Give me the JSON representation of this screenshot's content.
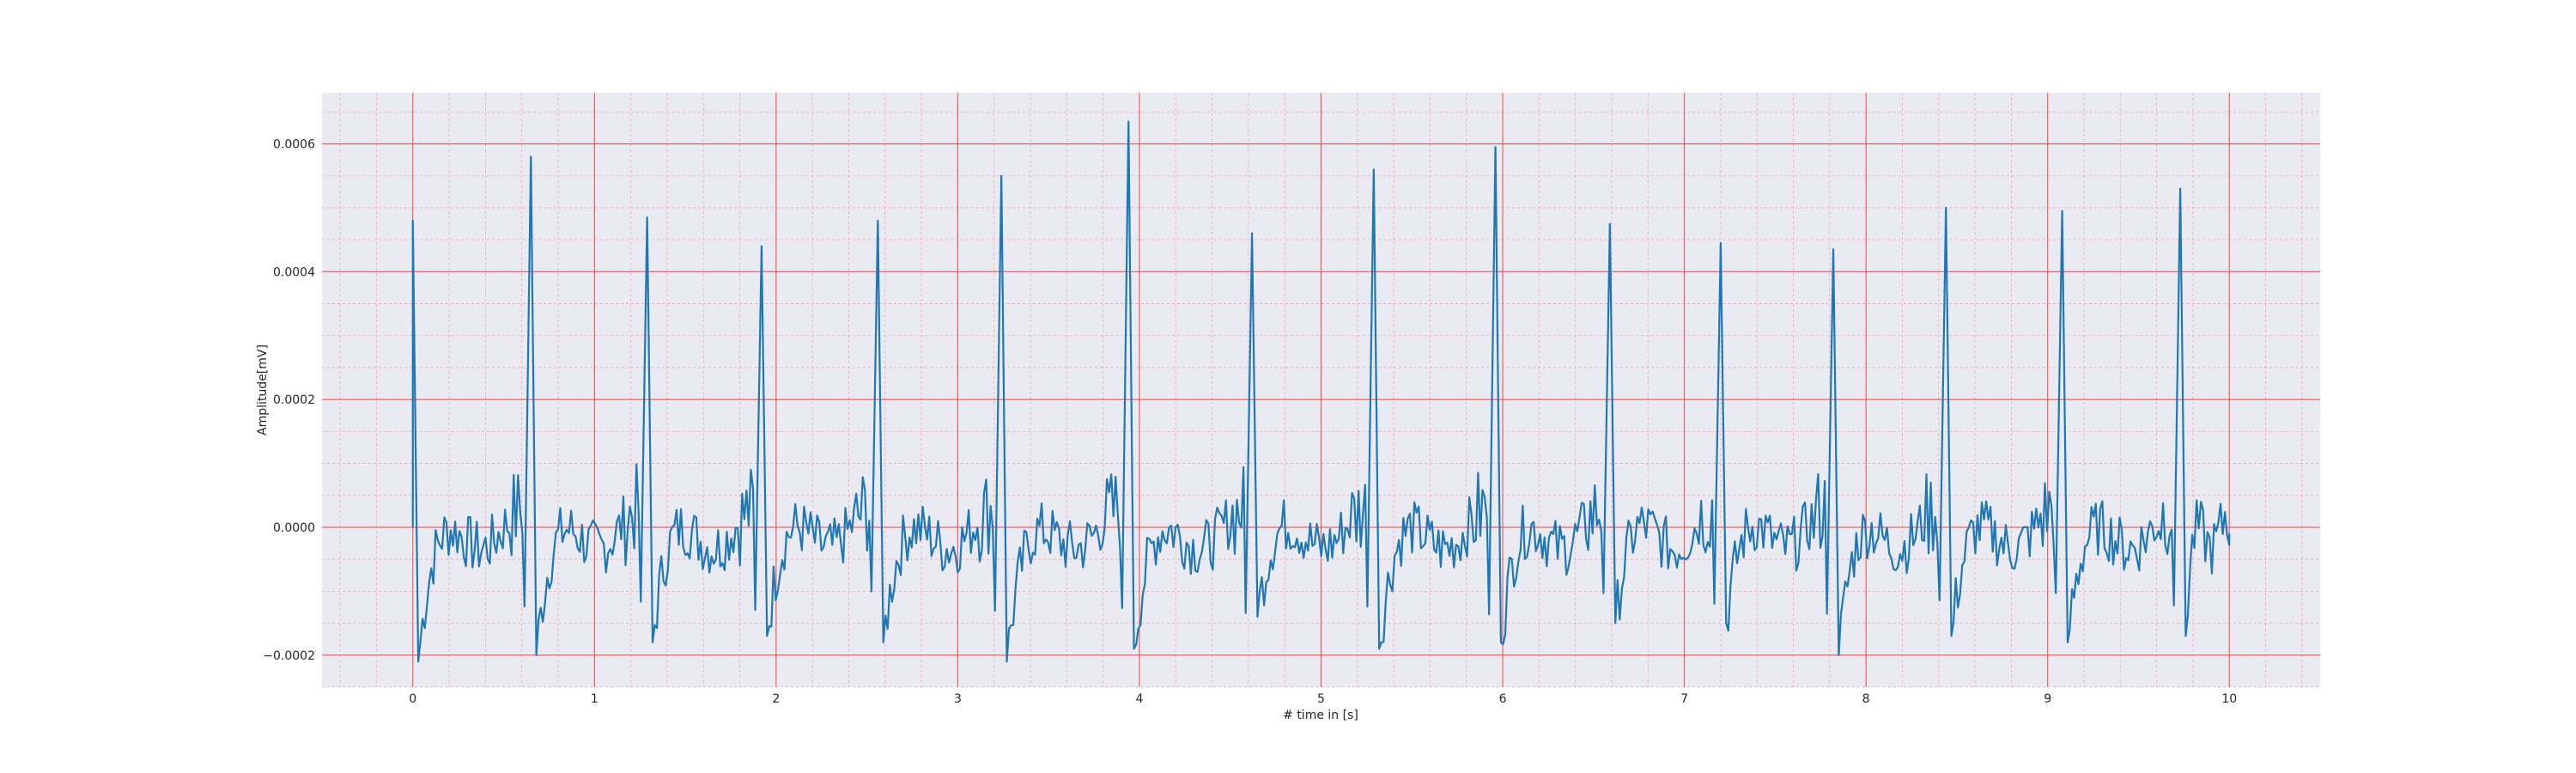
{
  "chart_data": {
    "type": "line",
    "title": "",
    "xlabel": "# time in [s]",
    "ylabel": "Amplitude[mV]",
    "xlim": [
      -0.5,
      10.5
    ],
    "ylim": [
      -0.00025,
      0.00068
    ],
    "xticks": [
      0,
      1,
      2,
      3,
      4,
      5,
      6,
      7,
      8,
      9,
      10
    ],
    "yticks": [
      -0.0002,
      0.0,
      0.0002,
      0.0004,
      0.0006
    ],
    "ytick_labels": [
      "−0.0002",
      "0.0000",
      "0.0002",
      "0.0004",
      "0.0006"
    ],
    "grid": true,
    "minor_grid": true,
    "legend": "none",
    "colors": {
      "line": "#1f77b4",
      "axes_bg": "#eaeaf2",
      "major_grid": "#ef5350",
      "minor_grid": "#f4a3a8"
    },
    "series": [
      {
        "r_peaks": [
          [
            0.0,
            0.00048
          ],
          [
            0.65,
            0.00058
          ],
          [
            1.29,
            0.000485
          ],
          [
            1.92,
            0.00044
          ],
          [
            2.56,
            0.00048
          ],
          [
            3.24,
            0.00055
          ],
          [
            3.94,
            0.000635
          ],
          [
            4.62,
            0.00046
          ],
          [
            5.29,
            0.00056
          ],
          [
            5.96,
            0.000595
          ],
          [
            6.59,
            0.000475
          ],
          [
            7.2,
            0.000445
          ],
          [
            7.82,
            0.000435
          ],
          [
            8.44,
            0.0005
          ],
          [
            9.08,
            0.000495
          ],
          [
            9.73,
            0.00053
          ]
        ],
        "s_troughs": [
          [
            0.03,
            -0.00021
          ],
          [
            0.68,
            -0.0002
          ],
          [
            1.32,
            -0.00018
          ],
          [
            1.95,
            -0.00017
          ],
          [
            2.59,
            -0.00018
          ],
          [
            3.27,
            -0.00021
          ],
          [
            3.97,
            -0.00019
          ],
          [
            4.65,
            -0.00014
          ],
          [
            5.32,
            -0.00019
          ],
          [
            5.99,
            -0.00018
          ],
          [
            6.62,
            -0.00015
          ],
          [
            7.23,
            -0.00015
          ],
          [
            7.85,
            -0.0002
          ],
          [
            8.47,
            -0.00017
          ],
          [
            9.11,
            -0.00018
          ],
          [
            9.76,
            -0.00017
          ]
        ],
        "end_point": [
          10.0,
          -1e-05
        ]
      }
    ]
  }
}
